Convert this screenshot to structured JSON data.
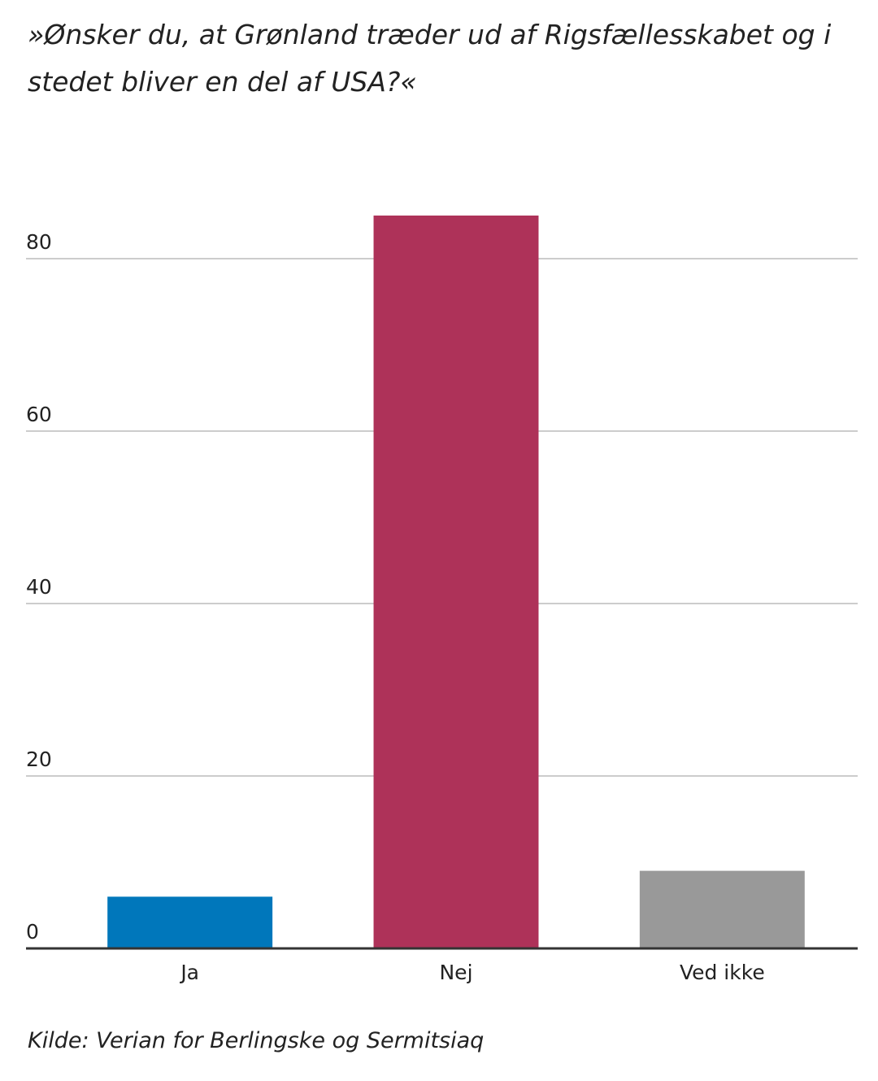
{
  "chart_data": {
    "type": "bar",
    "title": "»Ønsker du, at Grønland træder ud af Rigsfællesskabet og i stedet bliver en del af USA?«",
    "categories": [
      "Ja",
      "Nej",
      "Ved ikke"
    ],
    "values": [
      6,
      85,
      9
    ],
    "colors": [
      "#0077bb",
      "#ae3259",
      "#999999"
    ],
    "ylim": [
      0,
      90
    ],
    "yticks": [
      0,
      20,
      40,
      60,
      80
    ],
    "grid": true,
    "source": "Kilde: Verian for Berlingske og Sermitsiaq"
  }
}
